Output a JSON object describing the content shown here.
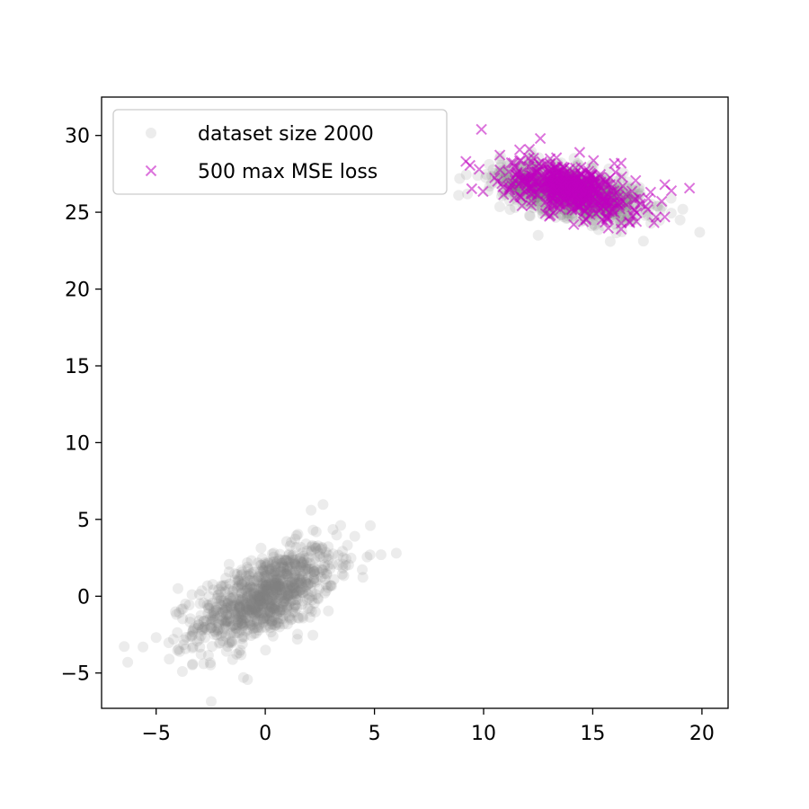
{
  "chart_data": {
    "type": "scatter",
    "title": "",
    "xlabel": "",
    "ylabel": "",
    "xlim": [
      -7.5,
      21.2
    ],
    "ylim": [
      -7.3,
      32.5
    ],
    "x_ticks": [
      -5,
      0,
      5,
      10,
      15,
      20
    ],
    "x_tick_labels": [
      "−5",
      "0",
      "5",
      "10",
      "15",
      "20"
    ],
    "y_ticks": [
      -5,
      0,
      5,
      10,
      15,
      20,
      25,
      30
    ],
    "y_tick_labels": [
      "−5",
      "0",
      "5",
      "10",
      "15",
      "20",
      "25",
      "30"
    ],
    "grid": false,
    "legend_placement": "top-left",
    "series": [
      {
        "name": "dataset size 2000",
        "marker": "circle",
        "color": "#808080",
        "opacity": 0.15,
        "count": 2000,
        "clusters": [
          {
            "n": 1000,
            "mean": [
              0,
              0
            ],
            "std": [
              1.6,
              1.6
            ],
            "corr": 0.6
          },
          {
            "n": 1000,
            "mean": [
              14,
              26.3
            ],
            "std": [
              1.6,
              0.9
            ],
            "corr": -0.5
          }
        ],
        "notable_points": [
          [
            -6.3,
            -4.3
          ],
          [
            -5.6,
            -3.3
          ],
          [
            -4.4,
            -4.1
          ],
          [
            -3.8,
            -4.9
          ],
          [
            -4,
            0.5
          ],
          [
            5.3,
            2.7
          ],
          [
            6,
            2.8
          ],
          [
            4.1,
            3.9
          ],
          [
            2.1,
            5.6
          ],
          [
            -1,
            -5.3
          ],
          [
            8.9,
            27.2
          ],
          [
            10.2,
            26.4
          ],
          [
            19.9,
            23.7
          ],
          [
            19,
            24.5
          ],
          [
            12.5,
            23.5
          ],
          [
            15.8,
            23.1
          ]
        ]
      },
      {
        "name": "500 max MSE loss",
        "marker": "x",
        "color": "#bf00bf",
        "opacity": 0.55,
        "count": 500,
        "cluster": {
          "mean": [
            14,
            26.5
          ],
          "std": [
            1.5,
            0.9
          ],
          "corr": -0.5
        },
        "notable_points": [
          [
            9.9,
            30.4
          ],
          [
            12.6,
            29.8
          ],
          [
            12.1,
            29.1
          ],
          [
            9.8,
            27.8
          ],
          [
            18.3,
            26.8
          ],
          [
            18.6,
            26.4
          ],
          [
            16.3,
            23.9
          ],
          [
            17,
            24.4
          ],
          [
            18.3,
            24.7
          ],
          [
            16.3,
            28.2
          ],
          [
            14.4,
            28.9
          ]
        ]
      }
    ]
  }
}
